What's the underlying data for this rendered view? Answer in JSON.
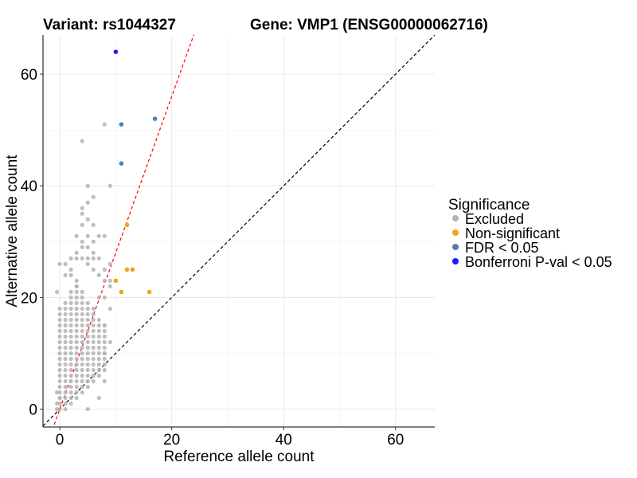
{
  "chart_data": {
    "type": "scatter",
    "title_left": "Variant: rs1044327",
    "title_right": "Gene: VMP1 (ENSG00000062716)",
    "xlabel": "Reference allele count",
    "ylabel": "Alternative allele count",
    "xlim": [
      -3,
      67
    ],
    "ylim": [
      -3.2,
      67
    ],
    "xticks": [
      0,
      20,
      40,
      60
    ],
    "yticks": [
      0,
      20,
      40,
      60
    ],
    "grid": true,
    "legend": {
      "title": "Significance",
      "position": "right",
      "entries": [
        {
          "label": "Excluded",
          "color": "#b3b3b3"
        },
        {
          "label": "Non-significant",
          "color": "#f5a31a"
        },
        {
          "label": "FDR < 0.05",
          "color": "#4f7fb5"
        },
        {
          "label": "Bonferroni P-val < 0.05",
          "color": "#1a1aff"
        }
      ]
    },
    "reference_lines": [
      {
        "name": "identity",
        "slope": 1,
        "intercept": 0,
        "color": "#000000",
        "style": "dashed"
      },
      {
        "name": "fit",
        "slope": 2.8,
        "intercept": 0,
        "color": "#ff0000",
        "style": "dashed"
      }
    ],
    "series": [
      {
        "name": "Excluded",
        "color": "#b3b3b3",
        "points": [
          [
            -0.5,
            0
          ],
          [
            -0.5,
            1
          ],
          [
            -0.5,
            3
          ],
          [
            -0.5,
            21
          ],
          [
            0,
            26
          ],
          [
            0,
            2
          ],
          [
            1,
            26
          ],
          [
            2,
            25
          ],
          [
            3,
            22
          ],
          [
            3,
            28
          ],
          [
            4,
            29
          ],
          [
            5,
            29
          ],
          [
            6,
            30
          ],
          [
            5,
            26
          ],
          [
            4,
            35
          ],
          [
            4,
            36
          ],
          [
            5,
            31
          ],
          [
            7,
            31
          ],
          [
            8,
            31
          ],
          [
            8,
            25
          ],
          [
            9,
            26
          ],
          [
            7,
            27
          ],
          [
            6,
            33
          ],
          [
            5,
            37
          ],
          [
            4,
            48
          ],
          [
            5,
            40
          ],
          [
            6,
            38
          ],
          [
            8,
            51
          ],
          [
            9,
            40
          ],
          [
            5,
            0
          ],
          [
            7,
            2
          ],
          [
            8,
            5
          ],
          [
            8,
            10
          ],
          [
            9,
            12
          ],
          [
            8,
            15
          ],
          [
            9,
            18
          ],
          [
            7,
            20
          ],
          [
            9,
            23
          ],
          [
            8,
            20
          ],
          [
            9,
            22
          ],
          [
            1,
            24
          ],
          [
            2,
            24
          ],
          [
            3,
            23
          ],
          [
            4,
            27
          ],
          [
            5,
            27
          ],
          [
            6,
            25
          ],
          [
            7,
            24
          ],
          [
            8,
            23
          ],
          [
            3,
            31
          ],
          [
            4,
            30
          ],
          [
            6,
            28
          ],
          [
            6,
            27
          ],
          [
            4,
            33
          ],
          [
            5,
            34
          ],
          [
            3,
            27
          ],
          [
            2,
            27
          ]
        ]
      },
      {
        "name": "Non-significant",
        "color": "#f5a31a",
        "points": [
          [
            10,
            23
          ],
          [
            11,
            21
          ],
          [
            12,
            25
          ],
          [
            13,
            25
          ],
          [
            16,
            21
          ],
          [
            12,
            33
          ]
        ]
      },
      {
        "name": "FDR < 0.05",
        "color": "#4f7fb5",
        "points": [
          [
            11,
            51
          ],
          [
            11,
            44
          ],
          [
            17,
            52
          ]
        ]
      },
      {
        "name": "Bonferroni P-val < 0.05",
        "color": "#1a1aff",
        "points": [
          [
            10,
            64
          ]
        ]
      }
    ]
  }
}
